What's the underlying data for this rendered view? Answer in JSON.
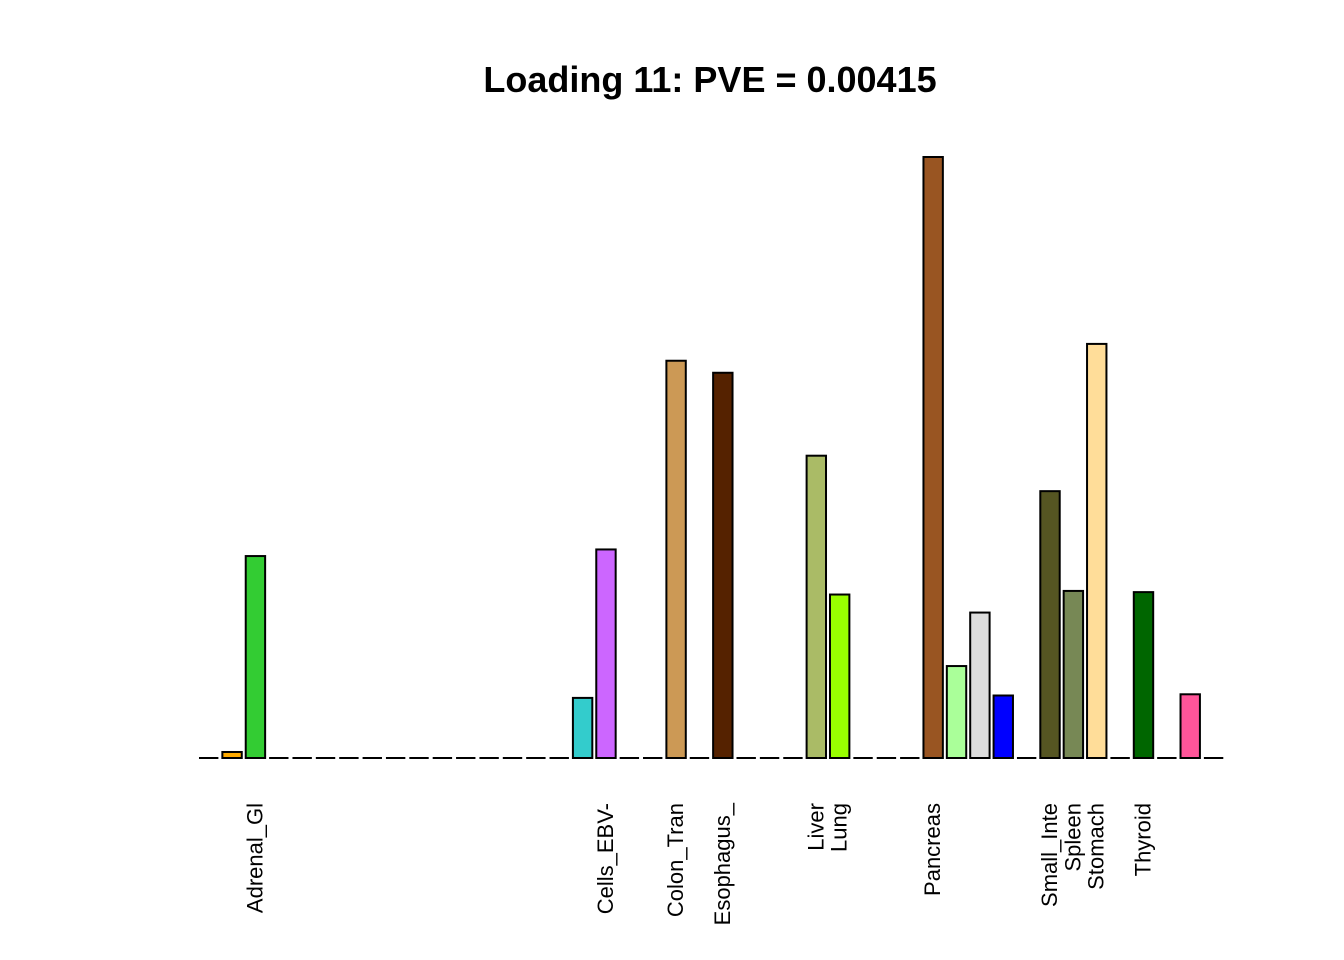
{
  "chart_data": {
    "type": "bar",
    "title": "Loading 11: PVE = 0.00415",
    "xlabel": "",
    "ylabel": "",
    "ylim": [
      0,
      1
    ],
    "axes_shown": false,
    "grid": false,
    "bars": [
      {
        "value": 0.0,
        "color": "#FF6600",
        "label": ""
      },
      {
        "value": 0.01,
        "color": "#FFAA00",
        "label": ""
      },
      {
        "value": 0.336,
        "color": "#33CC33",
        "label": "Adrenal_Gl"
      },
      {
        "value": 0.0,
        "color": "#FF0000",
        "label": ""
      },
      {
        "value": 0.0,
        "color": "#FF5555",
        "label": ""
      },
      {
        "value": 0.0,
        "color": "#FF00FF",
        "label": ""
      },
      {
        "value": 0.0,
        "color": "#0000FF",
        "label": ""
      },
      {
        "value": 0.0,
        "color": "#6600FF",
        "label": ""
      },
      {
        "value": 0.0,
        "color": "#AA00FF",
        "label": ""
      },
      {
        "value": 0.0,
        "color": "#FF00AA",
        "label": ""
      },
      {
        "value": 0.0,
        "color": "#EEEE00",
        "label": ""
      },
      {
        "value": 0.0,
        "color": "#EEEE00",
        "label": ""
      },
      {
        "value": 0.0,
        "color": "#EEEE00",
        "label": ""
      },
      {
        "value": 0.0,
        "color": "#EEEE00",
        "label": ""
      },
      {
        "value": 0.0,
        "color": "#EEEE00",
        "label": ""
      },
      {
        "value": 0.0,
        "color": "#EEEE00",
        "label": ""
      },
      {
        "value": 0.1,
        "color": "#33CCCC",
        "label": ""
      },
      {
        "value": 0.347,
        "color": "#CC66FF",
        "label": "Cells_EBV-"
      },
      {
        "value": 0.0,
        "color": "#AAEEFF",
        "label": ""
      },
      {
        "value": 0.0,
        "color": "#EEBB77",
        "label": ""
      },
      {
        "value": 0.661,
        "color": "#CC9955",
        "label": "Colon_Tran"
      },
      {
        "value": 0.0,
        "color": "#8B1C62",
        "label": ""
      },
      {
        "value": 0.641,
        "color": "#552200",
        "label": "Esophagus_"
      },
      {
        "value": 0.0,
        "color": "#BB9988",
        "label": ""
      },
      {
        "value": 0.0,
        "color": "#9900FF",
        "label": ""
      },
      {
        "value": 0.0,
        "color": "#660099",
        "label": ""
      },
      {
        "value": 0.503,
        "color": "#AABB66",
        "label": "Liver"
      },
      {
        "value": 0.272,
        "color": "#99FF00",
        "label": "Lung"
      },
      {
        "value": 0.0,
        "color": "#AAAAFF",
        "label": ""
      },
      {
        "value": 0.0,
        "color": "#AACC66",
        "label": ""
      },
      {
        "value": 0.0,
        "color": "#EEEEEE",
        "label": ""
      },
      {
        "value": 1.0,
        "color": "#995522",
        "label": "Pancreas"
      },
      {
        "value": 0.153,
        "color": "#AAFF99",
        "label": ""
      },
      {
        "value": 0.242,
        "color": "#DDDDDD",
        "label": ""
      },
      {
        "value": 0.104,
        "color": "#0000FF",
        "label": ""
      },
      {
        "value": 0.0,
        "color": "#999999",
        "label": ""
      },
      {
        "value": 0.444,
        "color": "#555522",
        "label": "Small_Inte"
      },
      {
        "value": 0.278,
        "color": "#778855",
        "label": "Spleen"
      },
      {
        "value": 0.689,
        "color": "#FFDD99",
        "label": "Stomach"
      },
      {
        "value": 0.0,
        "color": "#AAAAAA",
        "label": ""
      },
      {
        "value": 0.276,
        "color": "#006600",
        "label": "Thyroid"
      },
      {
        "value": 0.0,
        "color": "#FF66FF",
        "label": ""
      },
      {
        "value": 0.106,
        "color": "#FF5599",
        "label": ""
      },
      {
        "value": 0.0,
        "color": "#FF00BB",
        "label": ""
      }
    ]
  }
}
